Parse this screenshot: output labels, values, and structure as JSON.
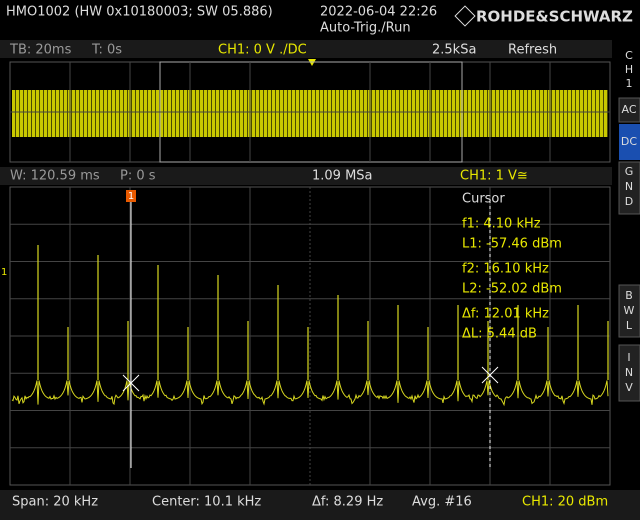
{
  "header": {
    "device": "HMO1002 (HW 0x10180003; SW 05.886)",
    "datetime": "2022-06-04 22:26",
    "mode": "Auto-Trig./Run",
    "brand": "ROHDE&SCHWARZ"
  },
  "zoom_bar": {
    "timebase": "TB: 20ms",
    "trigger": "T: 0s",
    "channel": "CH1: 0 V ./DC",
    "sample_rate": "2.5kSa",
    "acquisition": "Refresh"
  },
  "window_bar": {
    "width": "W: 120.59 ms",
    "position": "P: 0 s",
    "sample_rate": "1.09 MSa",
    "channel": "CH1: 1 V≅"
  },
  "side_menu": {
    "channel": [
      "C",
      "H",
      "1"
    ],
    "ac": "AC",
    "dc": "DC",
    "gnd": [
      "G",
      "N",
      "D"
    ],
    "bwl": [
      "B",
      "W",
      "L"
    ],
    "inv": [
      "I",
      "N",
      "V"
    ]
  },
  "cursor_panel": {
    "title": "Cursor",
    "f1": "f1: 4.10 kHz",
    "l1": "L1: -57.46 dBm",
    "f2": "f2: 16.10 kHz",
    "l2": "L2: -52.02 dBm",
    "df": "Δf: 12.01 kHz",
    "dl": "ΔL: 5.44 dB"
  },
  "markers": {
    "cursor1": "1",
    "level": "1"
  },
  "footer": {
    "span": "Span: 20 kHz",
    "center": "Center: 10.1 kHz",
    "resolution": "Δf: 8.29 Hz",
    "average": "Avg. #16",
    "scale": "CH1: 20 dBm"
  }
}
